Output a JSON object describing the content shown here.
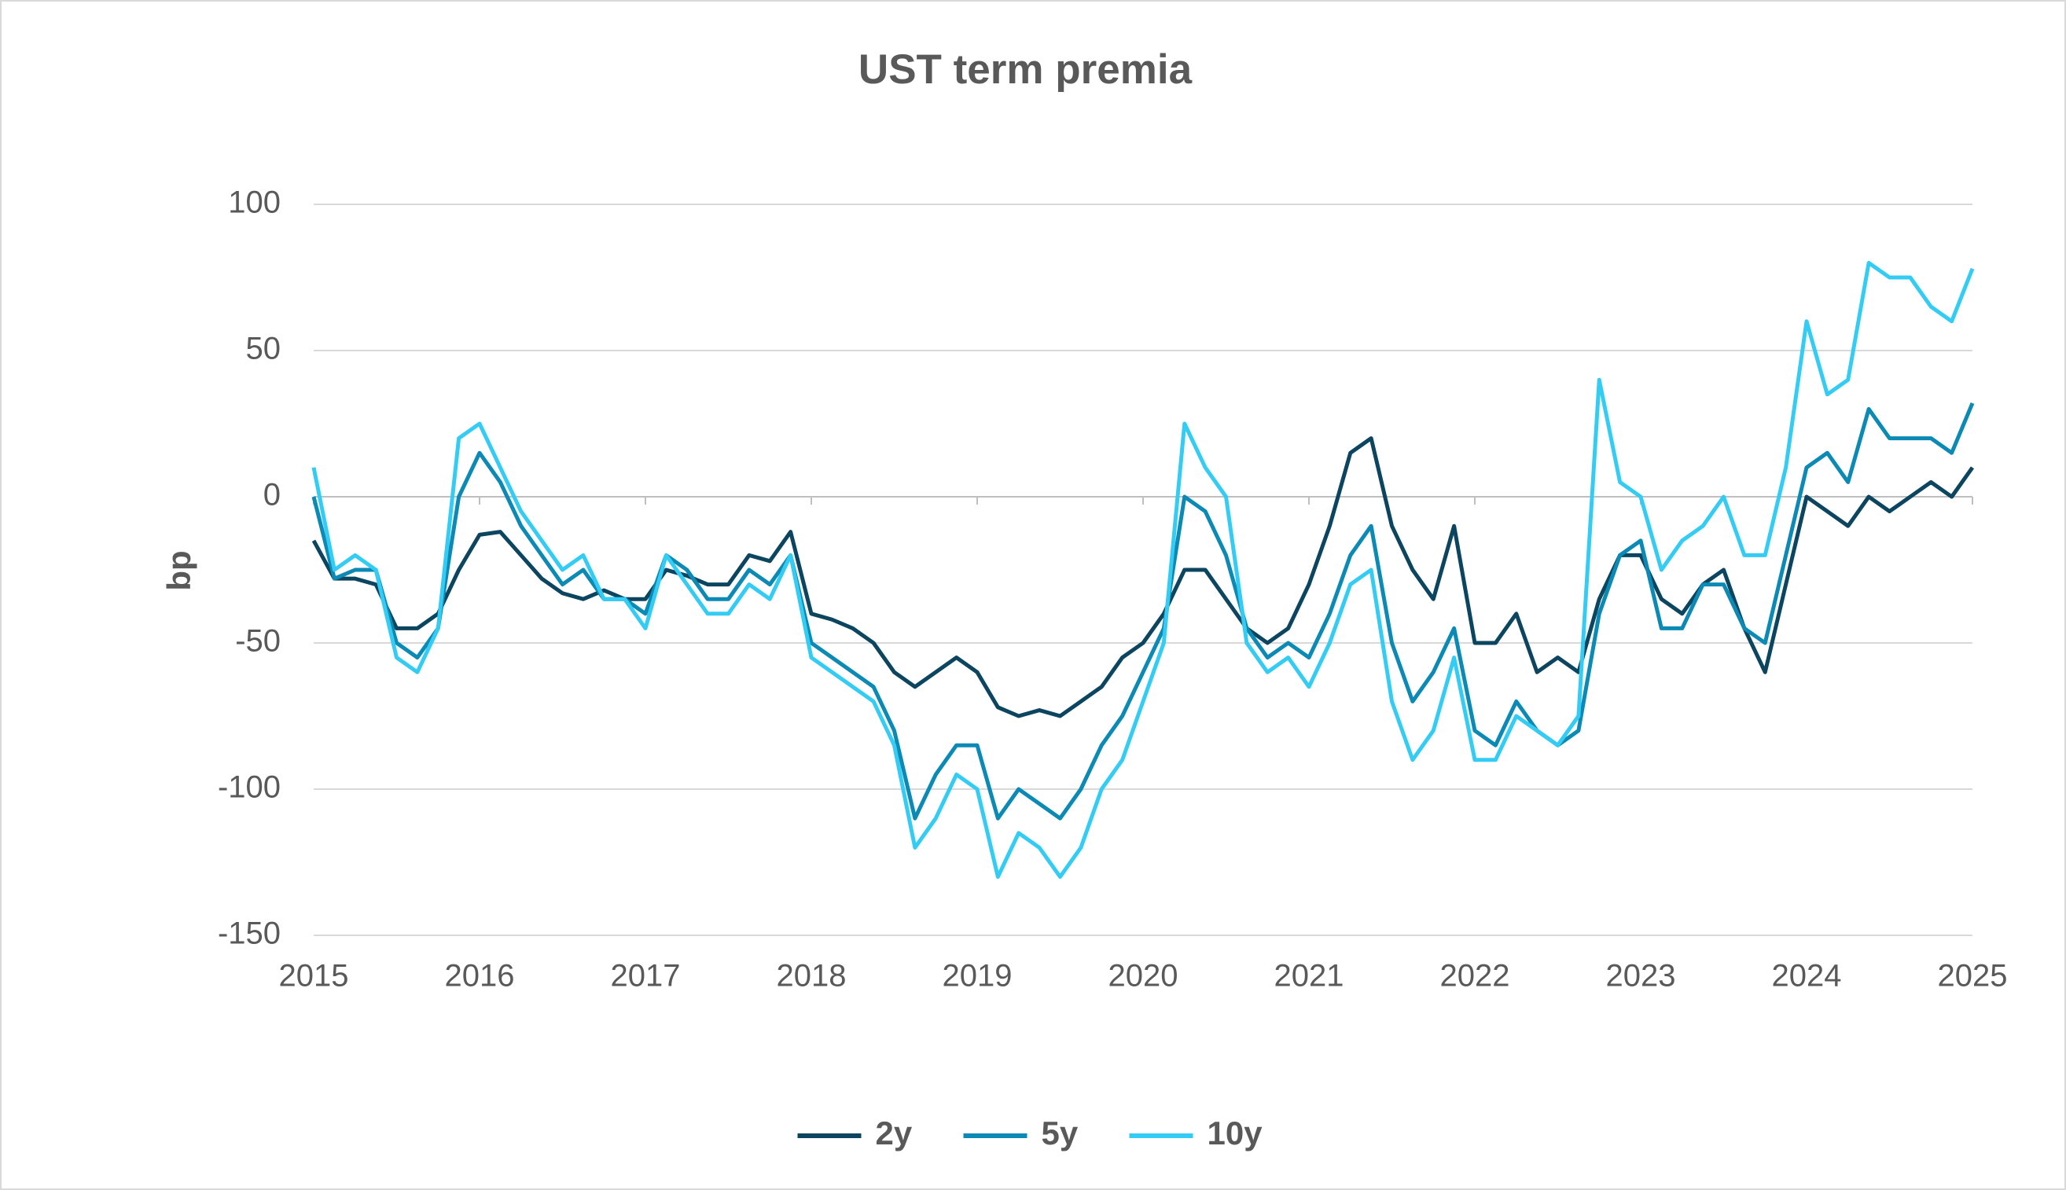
{
  "chart_data": {
    "type": "line",
    "title": "UST term premia",
    "y_label": "bp",
    "xlim": [
      2015,
      2025
    ],
    "xticks": [
      2015,
      2016,
      2017,
      2018,
      2019,
      2020,
      2021,
      2022,
      2023,
      2024,
      2025
    ],
    "ylim": [
      -150,
      100
    ],
    "yticks": [
      100,
      50,
      0,
      -50,
      -100,
      -150
    ],
    "grid": true,
    "legend": "bottom",
    "x": [
      2015,
      2015.125,
      2015.25,
      2015.375,
      2015.5,
      2015.625,
      2015.75,
      2015.875,
      2016,
      2016.125,
      2016.25,
      2016.375,
      2016.5,
      2016.625,
      2016.75,
      2016.875,
      2017,
      2017.125,
      2017.25,
      2017.375,
      2017.5,
      2017.625,
      2017.75,
      2017.875,
      2018,
      2018.125,
      2018.25,
      2018.375,
      2018.5,
      2018.625,
      2018.75,
      2018.875,
      2019,
      2019.125,
      2019.25,
      2019.375,
      2019.5,
      2019.625,
      2019.75,
      2019.875,
      2020,
      2020.125,
      2020.25,
      2020.375,
      2020.5,
      2020.625,
      2020.75,
      2020.875,
      2021,
      2021.125,
      2021.25,
      2021.375,
      2021.5,
      2021.625,
      2021.75,
      2021.875,
      2022,
      2022.125,
      2022.25,
      2022.375,
      2022.5,
      2022.625,
      2022.75,
      2022.875,
      2023,
      2023.125,
      2023.25,
      2023.375,
      2023.5,
      2023.625,
      2023.75,
      2023.875,
      2024,
      2024.125,
      2024.25,
      2024.375,
      2024.5,
      2024.625,
      2024.75,
      2024.875,
      2025
    ],
    "series": [
      {
        "name": "2y",
        "color": "#0b4560",
        "values": [
          -15,
          -28,
          -28,
          -30,
          -45,
          -45,
          -40,
          -25,
          -13,
          -12,
          -20,
          -28,
          -33,
          -35,
          -32,
          -35,
          -35,
          -25,
          -27,
          -30,
          -30,
          -20,
          -22,
          -12,
          -40,
          -42,
          -45,
          -50,
          -60,
          -65,
          -60,
          -55,
          -60,
          -72,
          -75,
          -73,
          -75,
          -70,
          -65,
          -55,
          -50,
          -40,
          -25,
          -25,
          -35,
          -45,
          -50,
          -45,
          -30,
          -10,
          15,
          20,
          -10,
          -25,
          -35,
          -10,
          -50,
          -50,
          -40,
          -60,
          -55,
          -60,
          -35,
          -20,
          -20,
          -35,
          -40,
          -30,
          -25,
          -45,
          -60,
          -30,
          0,
          -5,
          -10,
          0,
          -5,
          0,
          5,
          0,
          10
        ]
      },
      {
        "name": "5y",
        "color": "#0a8ab4",
        "values": [
          0,
          -28,
          -25,
          -25,
          -50,
          -55,
          -45,
          0,
          15,
          5,
          -10,
          -20,
          -30,
          -25,
          -35,
          -35,
          -40,
          -20,
          -25,
          -35,
          -35,
          -25,
          -30,
          -20,
          -50,
          -55,
          -60,
          -65,
          -80,
          -110,
          -95,
          -85,
          -85,
          -110,
          -100,
          -105,
          -110,
          -100,
          -85,
          -75,
          -60,
          -45,
          0,
          -5,
          -20,
          -45,
          -55,
          -50,
          -55,
          -40,
          -20,
          -10,
          -50,
          -70,
          -60,
          -45,
          -80,
          -85,
          -70,
          -80,
          -85,
          -80,
          -40,
          -20,
          -15,
          -45,
          -45,
          -30,
          -30,
          -45,
          -50,
          -20,
          10,
          15,
          5,
          30,
          20,
          20,
          20,
          15,
          32
        ]
      },
      {
        "name": "10y",
        "color": "#33ccf5",
        "values": [
          10,
          -25,
          -20,
          -25,
          -55,
          -60,
          -45,
          20,
          25,
          10,
          -5,
          -15,
          -25,
          -20,
          -35,
          -35,
          -45,
          -20,
          -30,
          -40,
          -40,
          -30,
          -35,
          -20,
          -55,
          -60,
          -65,
          -70,
          -85,
          -120,
          -110,
          -95,
          -100,
          -130,
          -115,
          -120,
          -130,
          -120,
          -100,
          -90,
          -70,
          -50,
          25,
          10,
          0,
          -50,
          -60,
          -55,
          -65,
          -50,
          -30,
          -25,
          -70,
          -90,
          -80,
          -55,
          -90,
          -90,
          -75,
          -80,
          -85,
          -75,
          40,
          5,
          0,
          -25,
          -15,
          -10,
          0,
          -20,
          -20,
          10,
          60,
          35,
          40,
          80,
          75,
          75,
          65,
          60,
          78
        ]
      }
    ]
  }
}
